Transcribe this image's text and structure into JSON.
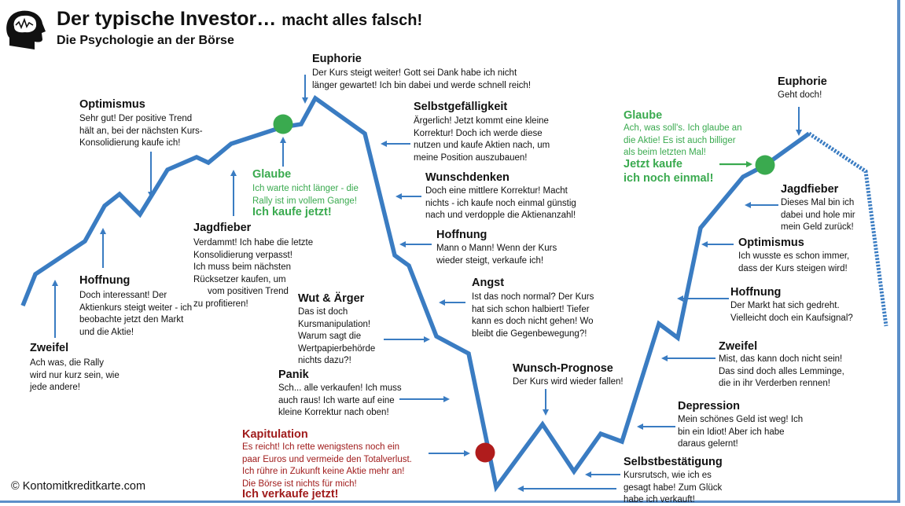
{
  "header": {
    "title_main": "Der typische Investor…",
    "title_tail": "macht alles falsch!",
    "subtitle": "Die Psychologie an der Börse"
  },
  "copyright": "© Kontomitkreditkarte.com",
  "icons": {
    "logo": "head-brain-icon"
  },
  "colors": {
    "curve": "#3a7cc2",
    "buy_dot": "#3aaa4f",
    "sell_dot": "#b01c1c",
    "green_text": "#3aaa4f",
    "red_text": "#a01c1c",
    "arrow": "#3a7cc2"
  },
  "phases": {
    "zweifel1": {
      "title": "Zweifel",
      "lines": [
        "Ach was, die Rally",
        "wird nur kurz sein, wie",
        "jede andere!"
      ]
    },
    "hoffnung1": {
      "title": "Hoffnung",
      "lines": [
        "Doch interessant! Der",
        "Aktienkurs steigt weiter - ich",
        "beobachte jetzt den Markt",
        "und die Aktie!"
      ]
    },
    "optimismus1": {
      "title": "Optimismus",
      "lines": [
        "Sehr gut! Der positive Trend",
        "hält an, bei der nächsten Kurs-",
        "Konsolidierung kaufe ich!"
      ]
    },
    "jagdfieber1": {
      "title": "Jagdfieber",
      "lines": [
        "Verdammt! Ich habe die letzte",
        "Konsolidierung verpasst!",
        "Ich muss beim nächsten",
        "Rücksetzer kaufen, um",
        "vom positiven Trend",
        "zu profitieren!"
      ]
    },
    "glaube1": {
      "title": "Glaube",
      "lines": [
        "Ich warte nicht länger - die",
        "Rally ist im vollem Gange!"
      ],
      "action": "Ich kaufe jetzt!"
    },
    "euphorie1": {
      "title": "Euphorie",
      "lines": [
        "Der Kurs steigt weiter! Gott sei Dank habe ich nicht",
        "länger gewartet! Ich bin dabei und werde schnell reich!"
      ]
    },
    "selbstgefaelligkeit": {
      "title": "Selbstgefälligkeit",
      "lines": [
        "Ärgerlich! Jetzt kommt eine kleine",
        "Korrektur! Doch ich werde diese",
        "nutzen und kaufe Aktien nach, um",
        "meine Position auszubauen!"
      ]
    },
    "wunschdenken": {
      "title": "Wunschdenken",
      "lines": [
        "Doch eine mittlere Korrektur! Macht",
        "nichts - ich kaufe noch einmal günstig",
        "nach und verdopple die Aktienanzahl!"
      ]
    },
    "hoffnung2": {
      "title": "Hoffnung",
      "lines": [
        "Mann o Mann! Wenn der Kurs",
        "wieder steigt, verkaufe ich!"
      ]
    },
    "angst": {
      "title": "Angst",
      "lines": [
        "Ist das noch normal? Der Kurs",
        "hat sich schon halbiert! Tiefer",
        "kann es doch nicht gehen! Wo",
        "bleibt die Gegenbewegung?!"
      ]
    },
    "wut": {
      "title": "Wut & Ärger",
      "lines": [
        "Das ist doch",
        "Kursmanipulation!",
        "Warum sagt die",
        "Wertpapierbehörde",
        "nichts dazu?!"
      ]
    },
    "panik": {
      "title": "Panik",
      "lines": [
        "Sch... alle verkaufen! Ich muss",
        "auch raus! Ich warte auf eine",
        "kleine Korrektur nach oben!"
      ]
    },
    "kapitulation": {
      "title": "Kapitulation",
      "lines": [
        "Es reicht! Ich rette wenigstens noch ein",
        "paar Euros und vermeide den Totalverlust.",
        "Ich rühre in Zukunft keine Aktie mehr an!",
        "Die Börse ist nichts für mich!"
      ],
      "action": "Ich verkaufe jetzt!"
    },
    "wunsch_prognose": {
      "title": "Wunsch-Prognose",
      "lines": [
        "Der Kurs wird wieder fallen!"
      ]
    },
    "selbstbestaetigung": {
      "title": "Selbstbestätigung",
      "lines": [
        "Kursrutsch, wie ich es",
        "gesagt habe! Zum Glück",
        "habe ich verkauft!"
      ]
    },
    "depression": {
      "title": "Depression",
      "lines": [
        "Mein schönes Geld ist weg! Ich",
        "bin ein Idiot! Aber ich habe",
        "daraus gelernt!"
      ]
    },
    "zweifel2": {
      "title": "Zweifel",
      "lines": [
        "Mist, das kann doch nicht sein!",
        "Das sind doch alles Lemminge,",
        "die in ihr Verderben rennen!"
      ]
    },
    "hoffnung3": {
      "title": "Hoffnung",
      "lines": [
        "Der Markt hat sich gedreht.",
        "Vielleicht doch ein Kaufsignal?"
      ]
    },
    "optimismus2": {
      "title": "Optimismus",
      "lines": [
        "Ich wusste es schon immer,",
        "dass der Kurs steigen wird!"
      ]
    },
    "jagdfieber2": {
      "title": "Jagdfieber",
      "lines": [
        "Dieses Mal bin ich",
        "dabei und hole mir",
        "mein Geld zurück!"
      ]
    },
    "glaube2": {
      "title": "Glaube",
      "lines": [
        "Ach, was soll's. Ich glaube an",
        "die Aktie! Es ist auch billiger",
        "als beim letzten Mal!"
      ],
      "action_lines": [
        "Jetzt kaufe",
        "ich noch einmal!"
      ]
    },
    "euphorie2": {
      "title": "Euphorie",
      "lines": [
        "Geht doch!"
      ]
    }
  }
}
